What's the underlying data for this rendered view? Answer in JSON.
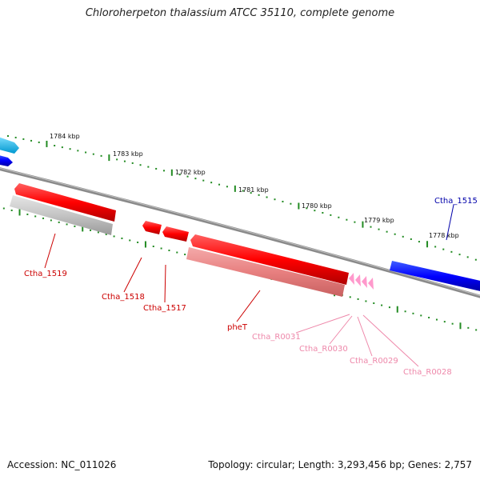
{
  "title": "Chloroherpeton thalassium ATCC 35110, complete genome",
  "footer": {
    "accession": "Accession: NC_011026",
    "summary": "Topology: circular; Length: 3,293,456 bp; Genes: 2,757"
  },
  "colors": {
    "backbone": "#808080",
    "cds_forward": "#ff0000",
    "cds_reverse": "#0000ff",
    "pseudo_light": "#aaaaaa",
    "rna": "#ff99cc",
    "tick": "#228b22",
    "label_red": "#cc0000",
    "label_blue": "#0000aa",
    "label_pink": "#ee88aa"
  },
  "scale": {
    "ticks": [
      "1784 kbp",
      "1783 kbp",
      "1782 kbp",
      "1781 kbp",
      "1780 kbp",
      "1779 kbp",
      "1778 kbp"
    ]
  },
  "genes": {
    "labels": [
      {
        "id": "Ctha_1519",
        "text": "Ctha_1519",
        "color": "red"
      },
      {
        "id": "Ctha_1518",
        "text": "Ctha_1518",
        "color": "red"
      },
      {
        "id": "Ctha_1517",
        "text": "Ctha_1517",
        "color": "red"
      },
      {
        "id": "pheT",
        "text": "pheT",
        "color": "red"
      },
      {
        "id": "Ctha_R0031",
        "text": "Ctha_R0031",
        "color": "pink"
      },
      {
        "id": "Ctha_R0030",
        "text": "Ctha_R0030",
        "color": "pink"
      },
      {
        "id": "Ctha_R0029",
        "text": "Ctha_R0029",
        "color": "pink"
      },
      {
        "id": "Ctha_R0028",
        "text": "Ctha_R0028",
        "color": "pink"
      },
      {
        "id": "Ctha_1515",
        "text": "Ctha_1515",
        "color": "blue"
      }
    ]
  }
}
